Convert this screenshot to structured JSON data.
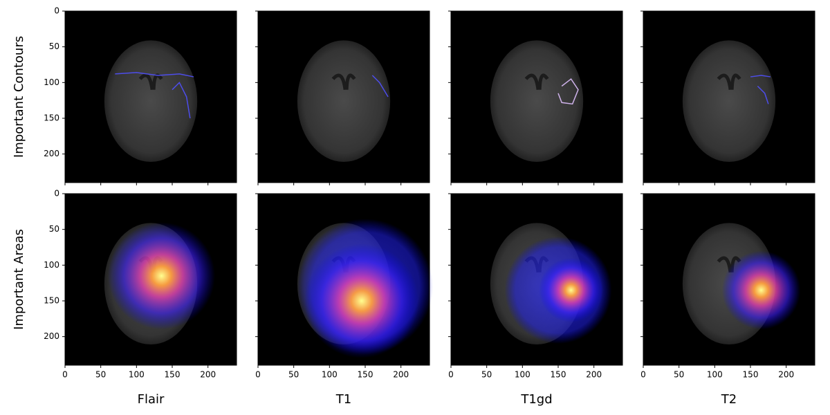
{
  "chart_data": {
    "type": "image-grid",
    "rows": [
      "Important Contours",
      "Important Areas"
    ],
    "columns": [
      "Flair",
      "T1",
      "T1gd",
      "T2"
    ],
    "xlim": [
      0,
      240
    ],
    "ylim": [
      240,
      0
    ],
    "xticks": [
      0,
      50,
      100,
      150,
      200
    ],
    "yticks": [
      0,
      50,
      100,
      150,
      200
    ]
  }
}
